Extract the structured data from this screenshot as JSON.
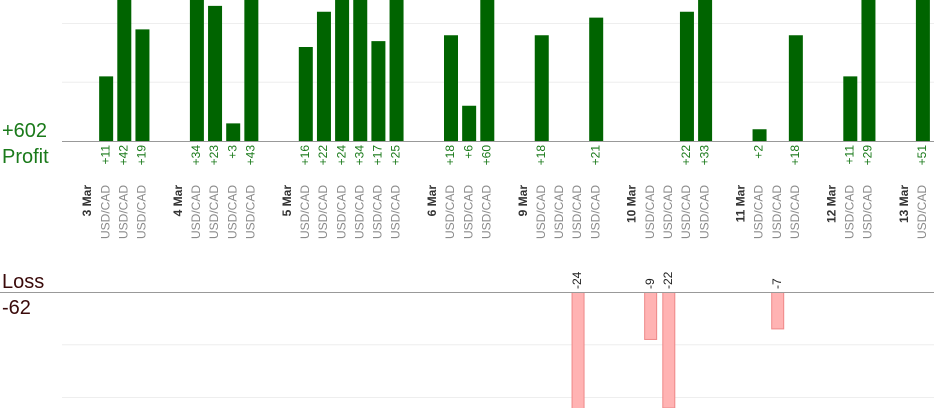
{
  "profit": {
    "label": "Profit",
    "total": 602,
    "total_label": "+602",
    "ylim": [
      0,
      24
    ],
    "yticks": [
      10,
      20
    ],
    "color": "#006400"
  },
  "loss": {
    "label": "Loss",
    "total": -62,
    "ylim": [
      0,
      -22
    ],
    "yticks": [
      -10,
      -20
    ],
    "color": "#ffb3b3"
  },
  "days": [
    {
      "date": "3 Mar",
      "trades": [
        {
          "symbol": "USD/CAD",
          "result": 11,
          "result_label": "+11"
        },
        {
          "symbol": "USD/CAD",
          "result": 42,
          "result_label": "+42"
        },
        {
          "symbol": "USD/CAD",
          "result": 19,
          "result_label": "+19"
        }
      ]
    },
    {
      "date": "4 Mar",
      "trades": [
        {
          "symbol": "USD/CAD",
          "result": 34,
          "result_label": "+34"
        },
        {
          "symbol": "USD/CAD",
          "result": 23,
          "result_label": "+23"
        },
        {
          "symbol": "USD/CAD",
          "result": 3,
          "result_label": "+3"
        },
        {
          "symbol": "USD/CAD",
          "result": 43,
          "result_label": "+43"
        }
      ]
    },
    {
      "date": "5 Mar",
      "trades": [
        {
          "symbol": "USD/CAD",
          "result": 16,
          "result_label": "+16"
        },
        {
          "symbol": "USD/CAD",
          "result": 22,
          "result_label": "+22"
        },
        {
          "symbol": "USD/CAD",
          "result": 24,
          "result_label": "+24"
        },
        {
          "symbol": "USD/CAD",
          "result": 34,
          "result_label": "+34"
        },
        {
          "symbol": "USD/CAD",
          "result": 17,
          "result_label": "+17"
        },
        {
          "symbol": "USD/CAD",
          "result": 25,
          "result_label": "+25"
        }
      ]
    },
    {
      "date": "6 Mar",
      "trades": [
        {
          "symbol": "USD/CAD",
          "result": 18,
          "result_label": "+18"
        },
        {
          "symbol": "USD/CAD",
          "result": 6,
          "result_label": "+6"
        },
        {
          "symbol": "USD/CAD",
          "result": 60,
          "result_label": "+60"
        }
      ]
    },
    {
      "date": "9 Mar",
      "trades": [
        {
          "symbol": "USD/CAD",
          "result": 18,
          "result_label": "+18"
        },
        {
          "symbol": "USD/CAD",
          "result": null
        },
        {
          "symbol": "USD/CAD",
          "result": -24
        },
        {
          "symbol": "USD/CAD",
          "result": 21,
          "result_label": "+21"
        }
      ]
    },
    {
      "date": "10 Mar",
      "trades": [
        {
          "symbol": "USD/CAD",
          "result": -9
        },
        {
          "symbol": "USD/CAD",
          "result": -22
        },
        {
          "symbol": "USD/CAD",
          "result": 22,
          "result_label": "+22"
        },
        {
          "symbol": "USD/CAD",
          "result": 33,
          "result_label": "+33"
        }
      ]
    },
    {
      "date": "11 Mar",
      "trades": [
        {
          "symbol": "USD/CAD",
          "result": 2,
          "result_label": "+2"
        },
        {
          "symbol": "USD/CAD",
          "result": -7
        },
        {
          "symbol": "USD/CAD",
          "result": 18,
          "result_label": "+18"
        }
      ]
    },
    {
      "date": "12 Mar",
      "trades": [
        {
          "symbol": "USD/CAD",
          "result": 11,
          "result_label": "+11"
        },
        {
          "symbol": "USD/CAD",
          "result": 29,
          "result_label": "+29"
        }
      ]
    },
    {
      "date": "13 Mar",
      "trades": [
        {
          "symbol": "USD/CAD",
          "result": 51,
          "result_label": "+51"
        }
      ]
    }
  ]
}
